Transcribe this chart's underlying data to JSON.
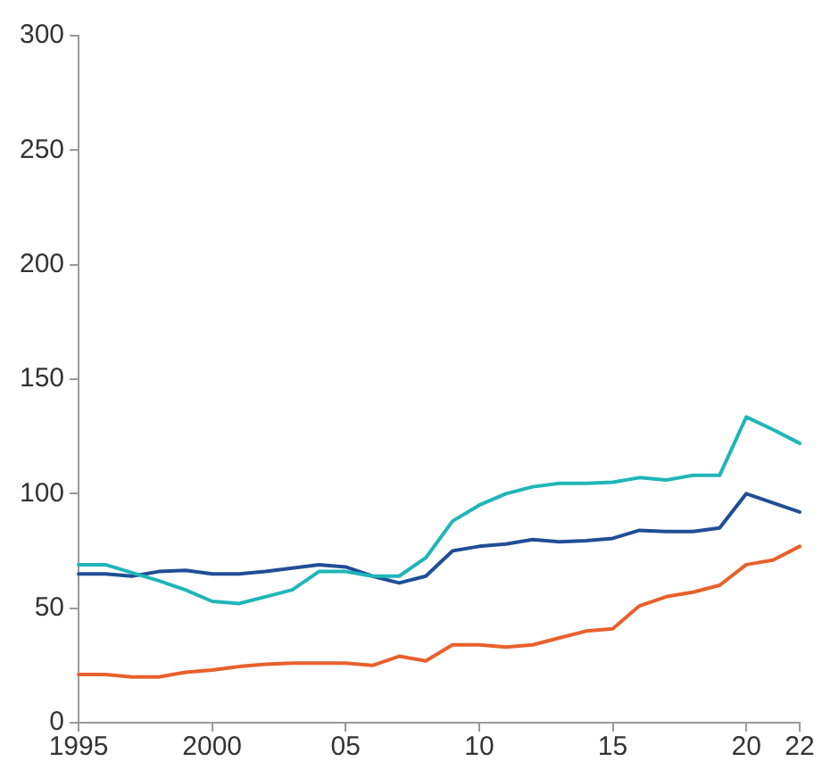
{
  "chart_data": {
    "type": "line",
    "x": [
      1995,
      1996,
      1997,
      1998,
      1999,
      2000,
      2001,
      2002,
      2003,
      2004,
      2005,
      2006,
      2007,
      2008,
      2009,
      2010,
      2011,
      2012,
      2013,
      2014,
      2015,
      2016,
      2017,
      2018,
      2019,
      2020,
      2021,
      2022
    ],
    "series": [
      {
        "color": "#1fb5b8",
        "values": [
          69,
          69,
          65.5,
          62,
          58,
          53,
          52,
          55,
          58,
          66,
          66,
          64,
          64,
          72,
          88,
          95,
          100,
          103,
          104.5,
          104.5,
          105,
          107,
          106,
          108,
          108,
          133.5,
          128,
          122
        ]
      },
      {
        "color": "#1f4e96",
        "values": [
          65,
          65,
          64,
          66,
          66.5,
          65,
          65,
          66,
          67.5,
          69,
          68,
          64,
          61,
          64,
          75,
          77,
          78,
          80,
          79,
          79.5,
          80.5,
          84,
          83.5,
          83.5,
          85,
          100,
          96,
          92
        ]
      },
      {
        "color": "#e8602c",
        "values": [
          21,
          21,
          20,
          20,
          22,
          23,
          24.5,
          25.5,
          26,
          26,
          26,
          25,
          29,
          27,
          34,
          34,
          33,
          34,
          37,
          40,
          41,
          51,
          55,
          57,
          60,
          69,
          71,
          77
        ]
      }
    ],
    "xlim": [
      1995,
      2022
    ],
    "xticks": [
      1995,
      2000,
      {
        "value": 2005,
        "label": "05"
      },
      {
        "value": 2010,
        "label": "10"
      },
      {
        "value": 2015,
        "label": "15"
      },
      {
        "value": 2020,
        "label": "20"
      },
      {
        "value": 2022,
        "label": "22"
      }
    ],
    "ylim": [
      0,
      300
    ],
    "yticks": [
      0,
      50,
      100,
      150,
      200,
      250,
      300
    ],
    "grid": false,
    "legend": false,
    "marker": "none",
    "line_style": "solid"
  }
}
